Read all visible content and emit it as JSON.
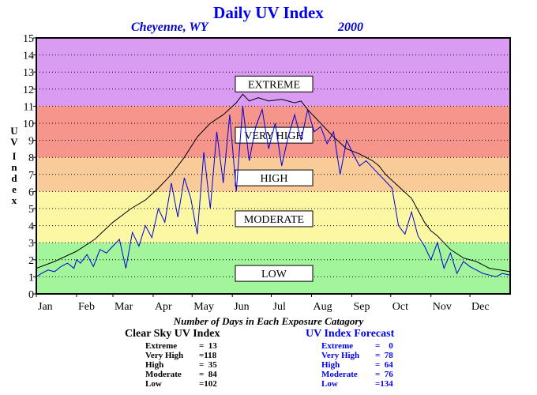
{
  "title": "Daily UV Index",
  "location": "Cheyenne, WY",
  "year": "2000",
  "chart_data": {
    "type": "line",
    "ylabel": "UV Index",
    "ylim": [
      0,
      15
    ],
    "yticks": [
      0,
      1,
      2,
      3,
      4,
      5,
      6,
      7,
      8,
      9,
      10,
      11,
      12,
      13,
      14,
      15
    ],
    "months": [
      "Jan",
      "Feb",
      "Mar",
      "Apr",
      "May",
      "Jun",
      "Jul",
      "Aug",
      "Sep",
      "Oct",
      "Nov",
      "Dec"
    ],
    "xlim": [
      1,
      366
    ],
    "grid": true,
    "bands": [
      {
        "label": "LOW",
        "from": 0,
        "to": 3,
        "color": "#a3f59c"
      },
      {
        "label": "MODERATE",
        "from": 3,
        "to": 6,
        "color": "#fbf7a3"
      },
      {
        "label": "HIGH",
        "from": 6,
        "to": 8,
        "color": "#f8cb98"
      },
      {
        "label": "VERY HIGH",
        "from": 8,
        "to": 11,
        "color": "#f5958b"
      },
      {
        "label": "EXTREME",
        "from": 11,
        "to": 15,
        "color": "#da9bf2"
      }
    ],
    "series": [
      {
        "role": "clear-sky",
        "color": "#000000",
        "x": [
          1,
          15,
          32,
          46,
          60,
          74,
          85,
          95,
          105,
          115,
          125,
          135,
          145,
          155,
          160,
          165,
          172,
          180,
          190,
          200,
          205,
          210,
          220,
          230,
          240,
          250,
          260,
          265,
          270,
          280,
          290,
          300,
          305,
          310,
          320,
          330,
          340,
          345,
          350,
          366
        ],
        "y": [
          1.5,
          1.9,
          2.5,
          3.2,
          4.2,
          5.0,
          5.5,
          6.2,
          7.0,
          8.0,
          9.2,
          10.0,
          10.5,
          11.2,
          11.7,
          11.3,
          11.5,
          11.3,
          11.4,
          11.2,
          11.3,
          10.8,
          10.0,
          9.2,
          8.5,
          8.2,
          7.8,
          7.5,
          7.0,
          6.3,
          5.6,
          4.2,
          3.7,
          3.4,
          2.6,
          2.1,
          1.9,
          1.7,
          1.5,
          1.3
        ]
      },
      {
        "role": "forecast",
        "color": "#0000dd",
        "x": [
          1,
          5,
          10,
          15,
          20,
          25,
          30,
          32,
          35,
          40,
          45,
          50,
          55,
          60,
          65,
          70,
          75,
          80,
          85,
          90,
          95,
          100,
          105,
          110,
          115,
          120,
          125,
          130,
          135,
          140,
          145,
          150,
          155,
          160,
          165,
          170,
          175,
          180,
          185,
          190,
          195,
          200,
          205,
          210,
          215,
          220,
          225,
          230,
          235,
          240,
          245,
          250,
          255,
          260,
          265,
          270,
          275,
          280,
          285,
          290,
          295,
          300,
          305,
          310,
          315,
          320,
          325,
          330,
          335,
          340,
          345,
          350,
          355,
          360,
          366
        ],
        "y": [
          1.0,
          1.2,
          1.4,
          1.3,
          1.6,
          1.8,
          1.5,
          2.0,
          1.8,
          2.3,
          1.6,
          2.6,
          2.4,
          2.8,
          3.2,
          1.5,
          3.6,
          2.8,
          4.0,
          3.3,
          5.0,
          4.2,
          6.5,
          4.5,
          6.8,
          5.6,
          3.5,
          8.3,
          5.0,
          9.5,
          6.5,
          10.5,
          6.0,
          11.0,
          7.8,
          9.8,
          10.8,
          8.5,
          10.0,
          7.5,
          9.2,
          10.5,
          9.0,
          10.8,
          9.5,
          9.8,
          8.8,
          9.5,
          7.0,
          9.0,
          8.2,
          7.5,
          7.8,
          7.4,
          7.0,
          6.6,
          6.2,
          4.0,
          3.5,
          4.8,
          3.4,
          2.8,
          2.0,
          3.0,
          1.5,
          2.4,
          1.2,
          1.9,
          1.6,
          1.4,
          1.2,
          1.1,
          1.0,
          1.2,
          1.1
        ]
      }
    ]
  },
  "caption": "Number of Days in Each Exposure Catagory",
  "clear_sky": {
    "heading": "Clear Sky UV Index",
    "rows": [
      {
        "label": "Extreme",
        "eq": "=  13"
      },
      {
        "label": "Very High",
        "eq": "=118"
      },
      {
        "label": "High",
        "eq": "=  35"
      },
      {
        "label": "Moderate",
        "eq": "=  84"
      },
      {
        "label": "Low",
        "eq": "=102"
      }
    ]
  },
  "forecast": {
    "heading": "UV Index Forecast",
    "rows": [
      {
        "label": "Extreme",
        "eq": "=    0"
      },
      {
        "label": "Very High",
        "eq": "=  78"
      },
      {
        "label": "High",
        "eq": "=  64"
      },
      {
        "label": "Moderate",
        "eq": "=  76"
      },
      {
        "label": "Low",
        "eq": "=134"
      }
    ]
  }
}
